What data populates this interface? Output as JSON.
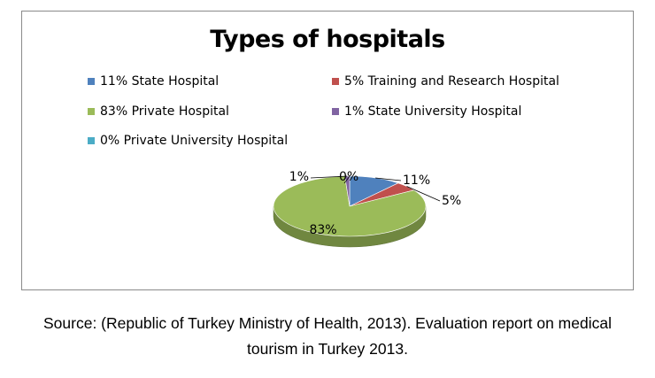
{
  "chart_data": {
    "type": "pie",
    "title": "Types of hospitals",
    "categories": [
      "State Hospital",
      "Training and Research Hospital",
      "Private Hospital",
      "State University Hospital",
      "Private University Hospital"
    ],
    "values": [
      11,
      5,
      83,
      1,
      0
    ],
    "legend_labels": [
      "11% State Hospital",
      "5% Training and Research Hospital",
      "83% Private Hospital",
      "1% State University Hospital",
      "0% Private University Hospital"
    ],
    "data_labels": [
      "11%",
      "5%",
      "83%",
      "1%",
      "0%"
    ],
    "colors": [
      "#4f81bd",
      "#c0504d",
      "#9bbb59",
      "#8064a2",
      "#4bacc6"
    ],
    "legend_position": "top",
    "three_d": true
  },
  "caption": {
    "line1": "Source: (Republic of Turkey Ministry of Health, 2013). Evaluation report on medical",
    "line2": "tourism in Turkey 2013."
  }
}
